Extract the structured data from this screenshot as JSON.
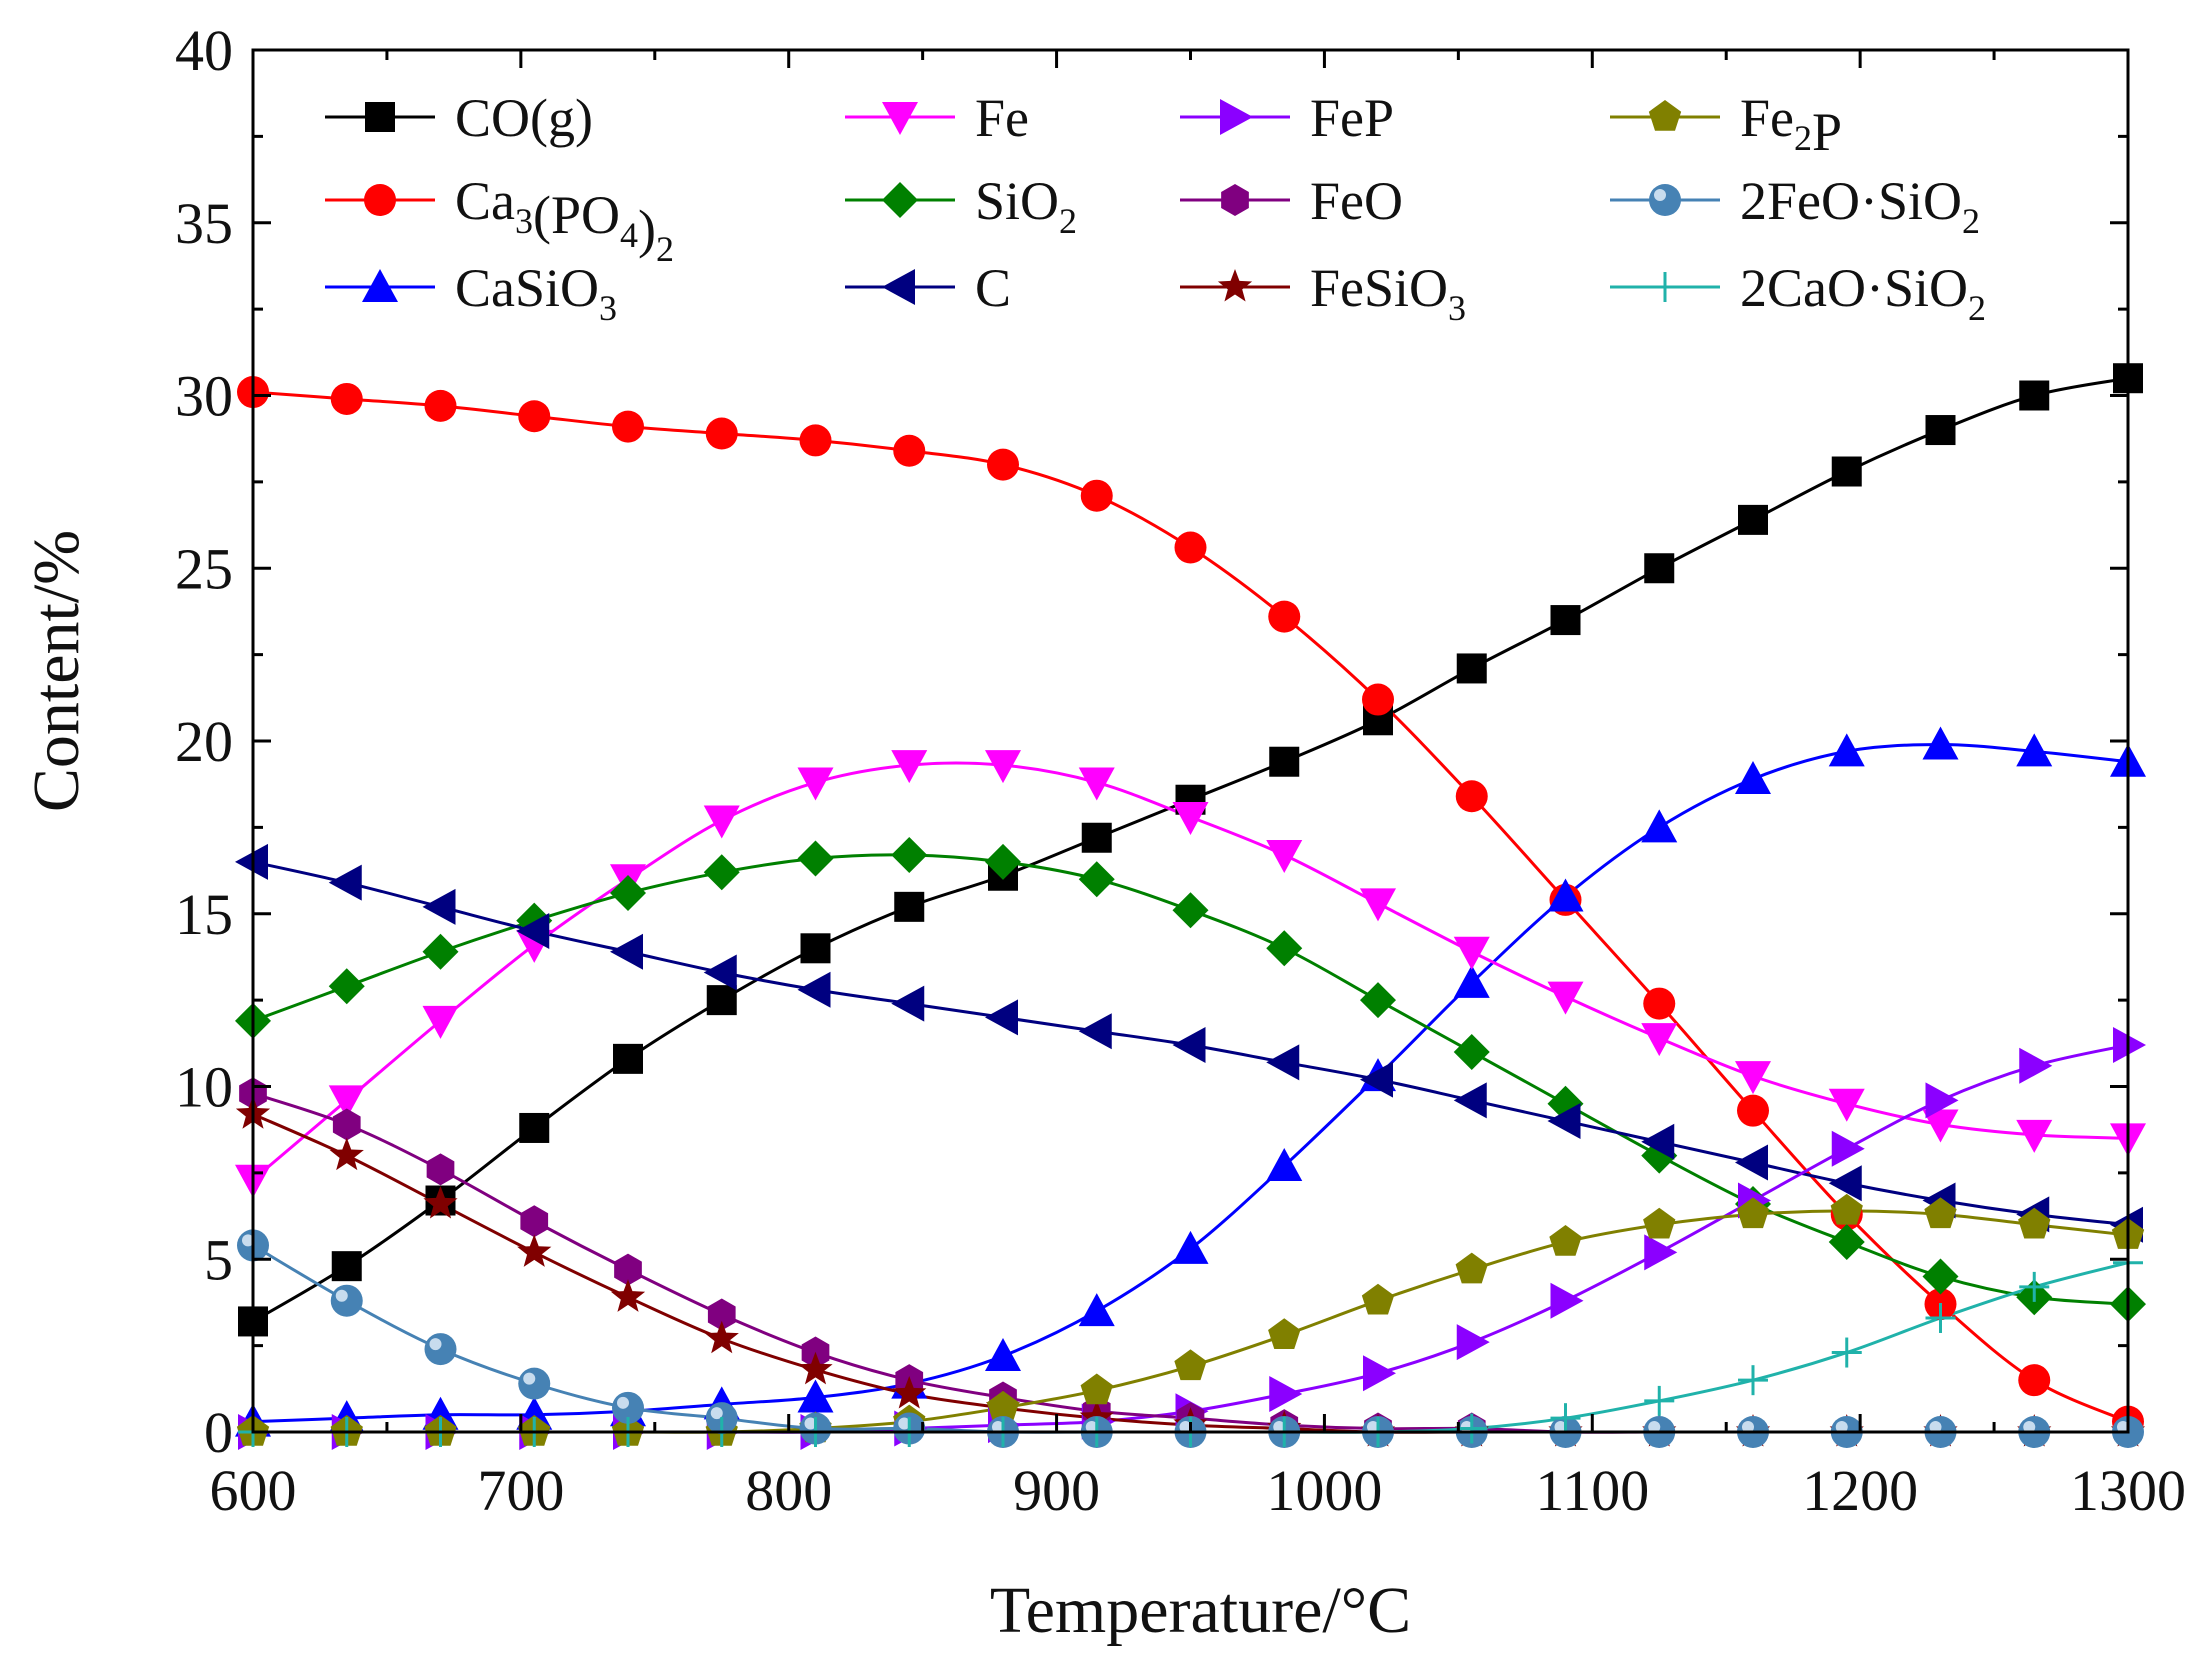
{
  "chart_data": {
    "type": "line",
    "title": "",
    "xlabel": "Temperature/°C",
    "ylabel": "Content/%",
    "xlim": [
      600,
      1300
    ],
    "ylim": [
      0,
      40
    ],
    "xticks": [
      "600",
      "700",
      "800",
      "900",
      "1000",
      "1100",
      "1200",
      "1300"
    ],
    "yticks": [
      "0",
      "5",
      "10",
      "15",
      "20",
      "25",
      "30",
      "35",
      "40"
    ],
    "grid": false,
    "legend_position": "top",
    "x": [
      600,
      635,
      670,
      705,
      740,
      775,
      810,
      845,
      880,
      915,
      950,
      985,
      1020,
      1055,
      1090,
      1125,
      1160,
      1195,
      1230,
      1265,
      1300
    ],
    "series": [
      {
        "name": "CO(g)",
        "base": "CO(g)",
        "sub1": "",
        "mid": "",
        "sub2": "",
        "color": "#000000",
        "marker": "square",
        "values": [
          3.2,
          4.8,
          6.7,
          8.8,
          10.8,
          12.5,
          14.0,
          15.2,
          16.1,
          17.2,
          18.3,
          19.4,
          20.6,
          22.1,
          23.5,
          25.0,
          26.4,
          27.8,
          29.0,
          30.0,
          30.5
        ]
      },
      {
        "name": "Ca3(PO4)2",
        "base": "Ca",
        "sub1": "3",
        "mid": "(PO",
        "sub2": "4",
        "tail": ")",
        "sub3": "2",
        "color": "#ff0000",
        "marker": "circle",
        "values": [
          30.1,
          29.9,
          29.7,
          29.4,
          29.1,
          28.9,
          28.7,
          28.4,
          28.0,
          27.1,
          25.6,
          23.6,
          21.2,
          18.4,
          15.4,
          12.4,
          9.3,
          6.3,
          3.7,
          1.5,
          0.3
        ]
      },
      {
        "name": "CaSiO3",
        "base": "CaSiO",
        "sub1": "3",
        "color": "#0000ff",
        "marker": "triangle-up",
        "values": [
          0.3,
          0.4,
          0.5,
          0.5,
          0.6,
          0.8,
          1.0,
          1.4,
          2.2,
          3.5,
          5.3,
          7.7,
          10.3,
          13.0,
          15.5,
          17.5,
          18.9,
          19.7,
          19.9,
          19.7,
          19.4
        ]
      },
      {
        "name": "Fe",
        "base": "Fe",
        "color": "#ff00ff",
        "marker": "triangle-down",
        "values": [
          7.3,
          9.6,
          11.9,
          14.1,
          16.0,
          17.7,
          18.8,
          19.3,
          19.3,
          18.8,
          17.8,
          16.7,
          15.3,
          13.9,
          12.6,
          11.4,
          10.3,
          9.5,
          8.9,
          8.6,
          8.5
        ]
      },
      {
        "name": "SiO2",
        "base": "SiO",
        "sub1": "2",
        "color": "#008000",
        "marker": "diamond",
        "values": [
          11.9,
          12.9,
          13.9,
          14.8,
          15.6,
          16.2,
          16.6,
          16.7,
          16.5,
          16.0,
          15.1,
          14.0,
          12.5,
          11.0,
          9.5,
          8.0,
          6.6,
          5.5,
          4.5,
          3.9,
          3.7
        ]
      },
      {
        "name": "C",
        "base": "C",
        "color": "#000080",
        "marker": "triangle-left",
        "values": [
          16.5,
          15.9,
          15.2,
          14.5,
          13.9,
          13.3,
          12.8,
          12.4,
          12.0,
          11.6,
          11.2,
          10.7,
          10.2,
          9.6,
          9.0,
          8.4,
          7.8,
          7.2,
          6.7,
          6.3,
          6.0
        ]
      },
      {
        "name": "FeP",
        "base": "FeP",
        "color": "#8b00ff",
        "marker": "triangle-right",
        "values": [
          0.0,
          0.0,
          0.0,
          0.0,
          0.0,
          0.0,
          0.0,
          0.1,
          0.2,
          0.3,
          0.6,
          1.1,
          1.7,
          2.6,
          3.8,
          5.2,
          6.7,
          8.2,
          9.6,
          10.6,
          11.2
        ]
      },
      {
        "name": "FeO",
        "base": "FeO",
        "color": "#800080",
        "marker": "hexagon",
        "values": [
          9.8,
          8.9,
          7.6,
          6.1,
          4.7,
          3.4,
          2.3,
          1.5,
          1.0,
          0.6,
          0.4,
          0.2,
          0.1,
          0.1,
          0.0,
          0.0,
          0.0,
          0.0,
          0.0,
          0.0,
          0.0
        ]
      },
      {
        "name": "FeSiO3",
        "base": "FeSiO",
        "sub1": "3",
        "color": "#800000",
        "marker": "star",
        "values": [
          9.2,
          8.0,
          6.6,
          5.2,
          3.9,
          2.7,
          1.8,
          1.1,
          0.7,
          0.4,
          0.2,
          0.1,
          0.0,
          0.0,
          0.0,
          0.0,
          0.0,
          0.0,
          0.0,
          0.0,
          0.0
        ]
      },
      {
        "name": "Fe2P",
        "base": "Fe",
        "sub1": "2",
        "mid": "P",
        "color": "#808000",
        "marker": "pentagon",
        "values": [
          0.0,
          0.0,
          0.0,
          0.0,
          0.0,
          0.0,
          0.1,
          0.3,
          0.7,
          1.2,
          1.9,
          2.8,
          3.8,
          4.7,
          5.5,
          6.0,
          6.3,
          6.4,
          6.3,
          6.0,
          5.7
        ]
      },
      {
        "name": "2FeO·SiO2",
        "base": "2FeO·SiO",
        "sub1": "2",
        "color": "#4682b4",
        "marker": "ball",
        "values": [
          5.4,
          3.8,
          2.4,
          1.4,
          0.7,
          0.4,
          0.1,
          0.1,
          0.0,
          0.0,
          0.0,
          0.0,
          0.0,
          0.0,
          0.0,
          0.0,
          0.0,
          0.0,
          0.0,
          0.0,
          0.0
        ]
      },
      {
        "name": "2CaO·SiO2",
        "base": "2CaO·SiO",
        "sub1": "2",
        "color": "#20b2aa",
        "marker": "plus",
        "values": [
          0.0,
          0.0,
          0.0,
          0.0,
          0.0,
          0.0,
          0.0,
          0.0,
          0.0,
          0.0,
          0.0,
          0.0,
          0.0,
          0.1,
          0.4,
          0.9,
          1.5,
          2.3,
          3.3,
          4.2,
          4.9
        ]
      }
    ]
  }
}
